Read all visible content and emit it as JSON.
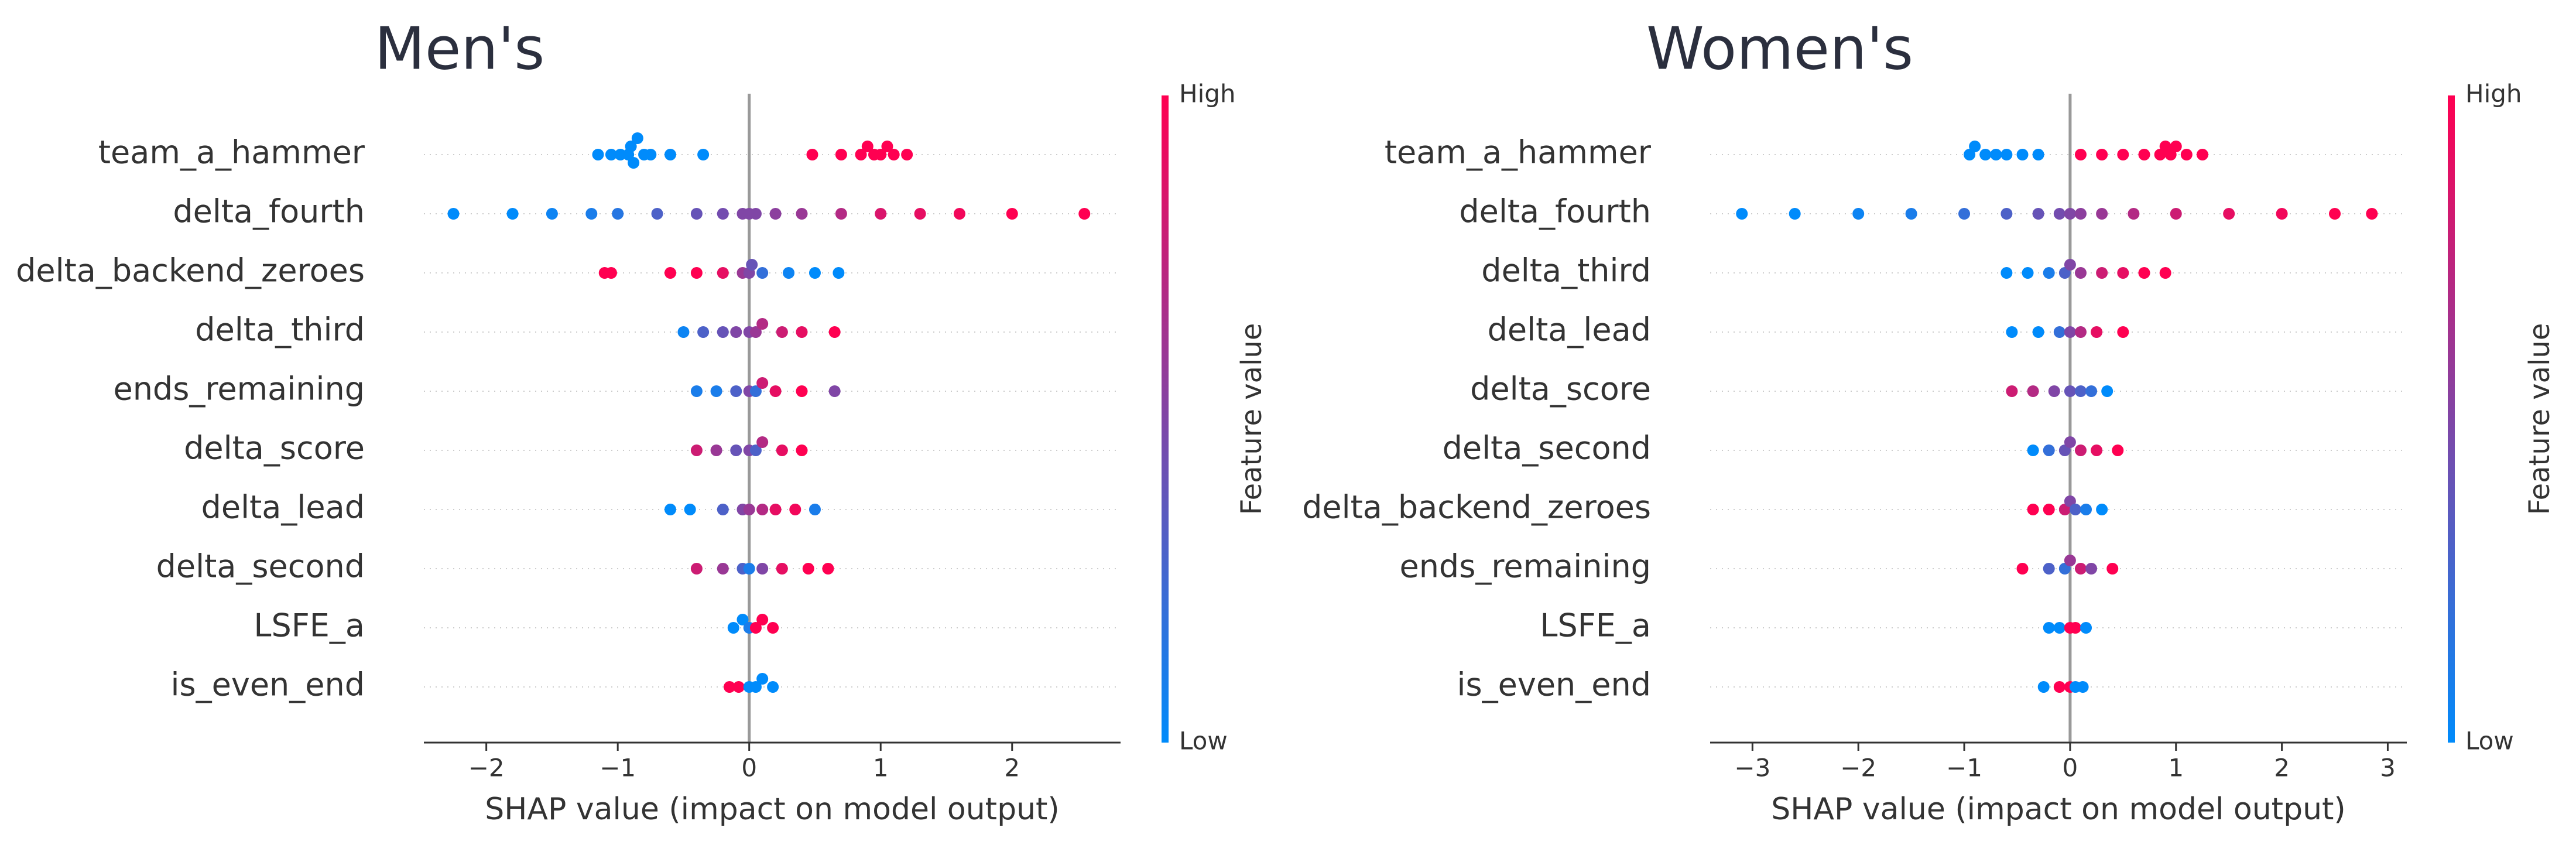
{
  "chart_data": [
    {
      "type": "beeswarm",
      "title": "Men's",
      "xlabel": "SHAP value (impact on model output)",
      "xlim": [
        -2.475,
        2.825
      ],
      "xticks": [
        {
          "value": -2,
          "label": "−2"
        },
        {
          "value": -1,
          "label": "−1"
        },
        0,
        1,
        2
      ],
      "grid": true,
      "colorbar": {
        "label": "Feature value",
        "low": "Low",
        "high": "High",
        "colors": [
          "#008bfb",
          "#ff0051"
        ]
      },
      "features": [
        {
          "name": "team_a_hammer",
          "values": [
            -1.15,
            -1.05,
            -0.98,
            -0.92,
            -0.9,
            -0.88,
            -0.85,
            -0.8,
            -0.75,
            -0.6,
            -0.35,
            0.48,
            0.7,
            0.85,
            0.9,
            0.95,
            1.0,
            1.05,
            1.1,
            1.2
          ],
          "feature_values": [
            0,
            0,
            0,
            0,
            0,
            0,
            0,
            0,
            0,
            0,
            0,
            1,
            1,
            1,
            1,
            1,
            1,
            1,
            1,
            1
          ]
        },
        {
          "name": "delta_fourth",
          "values": [
            -2.25,
            -1.8,
            -1.5,
            -1.2,
            -1.0,
            -0.7,
            -0.4,
            -0.2,
            -0.05,
            0,
            0.05,
            0.2,
            0.4,
            0.7,
            1.0,
            1.3,
            1.6,
            2.0,
            2.55
          ],
          "feature_values": [
            0,
            0,
            0.05,
            0.1,
            0.15,
            0.3,
            0.4,
            0.45,
            0.5,
            0.5,
            0.5,
            0.55,
            0.6,
            0.7,
            0.85,
            0.9,
            0.95,
            1,
            1
          ]
        },
        {
          "name": "delta_backend_zeroes",
          "values": [
            -1.1,
            -1.05,
            -0.6,
            -0.4,
            -0.2,
            -0.05,
            0,
            0.02,
            0.1,
            0.3,
            0.5,
            0.68
          ],
          "feature_values": [
            1,
            1,
            1,
            1,
            0.9,
            0.6,
            0.5,
            0.4,
            0.2,
            0.05,
            0,
            0
          ]
        },
        {
          "name": "delta_third",
          "values": [
            -0.5,
            -0.35,
            -0.2,
            -0.1,
            0,
            0.05,
            0.1,
            0.25,
            0.4,
            0.65
          ],
          "feature_values": [
            0.05,
            0.3,
            0.4,
            0.5,
            0.5,
            0.6,
            0.7,
            0.8,
            0.9,
            1
          ]
        },
        {
          "name": "ends_remaining",
          "values": [
            -0.4,
            -0.25,
            -0.1,
            0,
            0.05,
            0.1,
            0.2,
            0.4,
            0.65
          ],
          "feature_values": [
            0.1,
            0.1,
            0.3,
            0.5,
            0.2,
            0.8,
            0.9,
            1,
            0.5
          ]
        },
        {
          "name": "delta_score",
          "values": [
            -0.4,
            -0.25,
            -0.1,
            0,
            0.05,
            0.1,
            0.25,
            0.4
          ],
          "feature_values": [
            0.8,
            0.6,
            0.4,
            0.5,
            0.3,
            0.7,
            0.9,
            1
          ]
        },
        {
          "name": "delta_lead",
          "values": [
            -0.6,
            -0.45,
            -0.2,
            -0.05,
            0,
            0.1,
            0.2,
            0.35,
            0.5
          ],
          "feature_values": [
            0,
            0,
            0.3,
            0.5,
            0.6,
            0.7,
            0.9,
            0.95,
            0.1
          ]
        },
        {
          "name": "delta_second",
          "values": [
            -0.4,
            -0.2,
            -0.05,
            0,
            0.1,
            0.25,
            0.45,
            0.6
          ],
          "feature_values": [
            0.8,
            0.6,
            0.3,
            0.1,
            0.5,
            0.9,
            1,
            1
          ]
        },
        {
          "name": "LSFE_a",
          "values": [
            -0.12,
            -0.05,
            0,
            0.05,
            0.1,
            0.18
          ],
          "feature_values": [
            0,
            0,
            0.1,
            1,
            1,
            1
          ]
        },
        {
          "name": "is_even_end",
          "values": [
            -0.15,
            -0.08,
            0,
            0.05,
            0.1,
            0.18
          ],
          "feature_values": [
            1,
            1,
            0,
            0,
            0,
            0
          ]
        }
      ]
    },
    {
      "type": "beeswarm",
      "title": "Women's",
      "xlabel": "SHAP value (impact on model output)",
      "xlim": [
        -3.4,
        3.18
      ],
      "xticks": [
        {
          "value": -3,
          "label": "−3"
        },
        {
          "value": -2,
          "label": "−2"
        },
        {
          "value": -1,
          "label": "−1"
        },
        0,
        1,
        2,
        3
      ],
      "grid": true,
      "colorbar": {
        "label": "Feature value",
        "low": "Low",
        "high": "High",
        "colors": [
          "#008bfb",
          "#ff0051"
        ]
      },
      "features": [
        {
          "name": "team_a_hammer",
          "values": [
            -0.95,
            -0.9,
            -0.8,
            -0.7,
            -0.6,
            -0.45,
            -0.3,
            0.1,
            0.3,
            0.5,
            0.7,
            0.85,
            0.9,
            0.95,
            1.0,
            1.1,
            1.25
          ],
          "feature_values": [
            0,
            0,
            0,
            0,
            0,
            0,
            0,
            1,
            1,
            1,
            1,
            1,
            1,
            1,
            1,
            1,
            1
          ]
        },
        {
          "name": "delta_fourth",
          "values": [
            -3.1,
            -2.6,
            -2.0,
            -1.5,
            -1.0,
            -0.6,
            -0.3,
            -0.1,
            0,
            0.1,
            0.3,
            0.6,
            1.0,
            1.5,
            2.0,
            2.5,
            2.85
          ],
          "feature_values": [
            0,
            0,
            0.05,
            0.1,
            0.2,
            0.3,
            0.4,
            0.45,
            0.5,
            0.55,
            0.6,
            0.7,
            0.8,
            0.9,
            0.95,
            1,
            1
          ]
        },
        {
          "name": "delta_third",
          "values": [
            -0.6,
            -0.4,
            -0.2,
            -0.05,
            0,
            0.1,
            0.3,
            0.5,
            0.7,
            0.9
          ],
          "feature_values": [
            0,
            0,
            0.1,
            0.3,
            0.5,
            0.6,
            0.8,
            0.9,
            1,
            1
          ]
        },
        {
          "name": "delta_lead",
          "values": [
            -0.55,
            -0.3,
            -0.1,
            0,
            0.1,
            0.25,
            0.5
          ],
          "feature_values": [
            0,
            0,
            0.2,
            0.5,
            0.7,
            0.9,
            1
          ]
        },
        {
          "name": "delta_score",
          "values": [
            -0.55,
            -0.35,
            -0.15,
            0,
            0.1,
            0.2,
            0.35
          ],
          "feature_values": [
            0.8,
            0.7,
            0.5,
            0.4,
            0.3,
            0.2,
            0
          ]
        },
        {
          "name": "delta_second",
          "values": [
            -0.35,
            -0.2,
            -0.05,
            0,
            0.1,
            0.25,
            0.45
          ],
          "feature_values": [
            0,
            0.2,
            0.4,
            0.5,
            0.8,
            0.9,
            1
          ]
        },
        {
          "name": "delta_backend_zeroes",
          "values": [
            -0.35,
            -0.2,
            -0.05,
            0,
            0.05,
            0.15,
            0.3
          ],
          "feature_values": [
            1,
            1,
            0.8,
            0.5,
            0.3,
            0.1,
            0
          ]
        },
        {
          "name": "ends_remaining",
          "values": [
            -0.45,
            -0.2,
            -0.05,
            0,
            0.1,
            0.2,
            0.4
          ],
          "feature_values": [
            1,
            0.3,
            0.2,
            0.6,
            0.8,
            0.5,
            1
          ]
        },
        {
          "name": "LSFE_a",
          "values": [
            -0.2,
            -0.1,
            0,
            0.05,
            0.15
          ],
          "feature_values": [
            0,
            0,
            1,
            1,
            0
          ]
        },
        {
          "name": "is_even_end",
          "values": [
            -0.25,
            -0.1,
            0,
            0.05,
            0.12
          ],
          "feature_values": [
            0,
            1,
            1,
            0,
            0
          ]
        }
      ]
    }
  ]
}
